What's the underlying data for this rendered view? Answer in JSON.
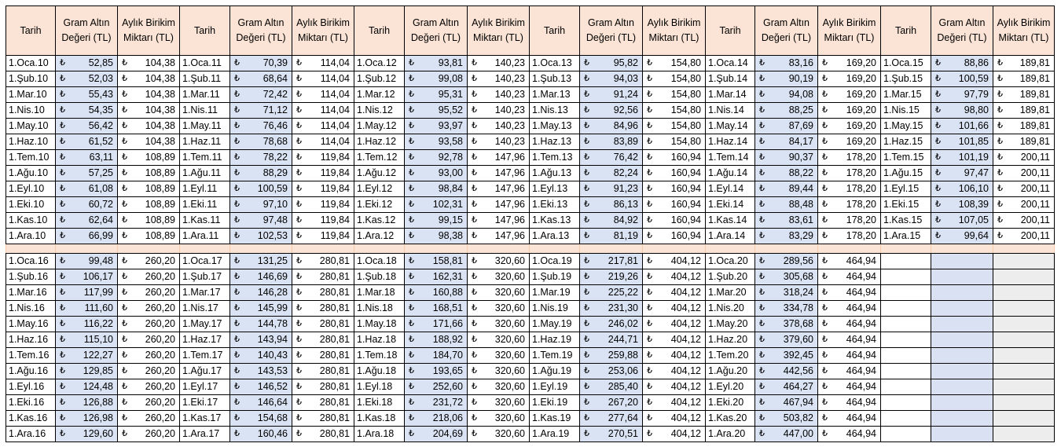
{
  "currency_symbol": "₺",
  "headers": {
    "date": "Tarih",
    "gold": "Gram Altın Değeri (TL)",
    "savings": "Aylık Birikim Miktarı (TL)"
  },
  "top_block": {
    "groups": [
      {
        "dates": [
          "1.Oca.10",
          "1.Şub.10",
          "1.Mar.10",
          "1.Nis.10",
          "1.May.10",
          "1.Haz.10",
          "1.Tem.10",
          "1.Ağu.10",
          "1.Eyl.10",
          "1.Eki.10",
          "1.Kas.10",
          "1.Ara.10"
        ],
        "gold": [
          "52,85",
          "52,03",
          "55,43",
          "54,35",
          "56,42",
          "61,52",
          "63,11",
          "57,25",
          "61,08",
          "60,72",
          "62,64",
          "66,99"
        ],
        "savings": [
          "104,38",
          "104,38",
          "104,38",
          "104,38",
          "104,38",
          "104,38",
          "108,89",
          "108,89",
          "108,89",
          "108,89",
          "108,89",
          "108,89"
        ]
      },
      {
        "dates": [
          "1.Oca.11",
          "1.Şub.11",
          "1.Mar.11",
          "1.Nis.11",
          "1.May.11",
          "1.Haz.11",
          "1.Tem.11",
          "1.Ağu.11",
          "1.Eyl.11",
          "1.Eki.11",
          "1.Kas.11",
          "1.Ara.11"
        ],
        "gold": [
          "70,39",
          "68,64",
          "72,42",
          "71,12",
          "76,46",
          "78,68",
          "78,22",
          "88,29",
          "100,59",
          "97,10",
          "97,48",
          "102,53"
        ],
        "savings": [
          "114,04",
          "114,04",
          "114,04",
          "114,04",
          "114,04",
          "114,04",
          "119,84",
          "119,84",
          "119,84",
          "119,84",
          "119,84",
          "119,84"
        ]
      },
      {
        "dates": [
          "1.Oca.12",
          "1.Şub.12",
          "1.Mar.12",
          "1.Nis.12",
          "1.May.12",
          "1.Haz.12",
          "1.Tem.12",
          "1.Ağu.12",
          "1.Eyl.12",
          "1.Eki.12",
          "1.Kas.12",
          "1.Ara.12"
        ],
        "gold": [
          "93,81",
          "99,08",
          "95,31",
          "95,52",
          "93,97",
          "93,58",
          "92,78",
          "93,00",
          "98,84",
          "102,31",
          "99,15",
          "98,38"
        ],
        "savings": [
          "140,23",
          "140,23",
          "140,23",
          "140,23",
          "140,23",
          "140,23",
          "147,96",
          "147,96",
          "147,96",
          "147,96",
          "147,96",
          "147,96"
        ]
      },
      {
        "dates": [
          "1.Oca.13",
          "1.Şub.13",
          "1.Mar.13",
          "1.Nis.13",
          "1.May.13",
          "1.Haz.13",
          "1.Tem.13",
          "1.Ağu.13",
          "1.Eyl.13",
          "1.Eki.13",
          "1.Kas.13",
          "1.Ara.13"
        ],
        "gold": [
          "95,82",
          "94,03",
          "91,24",
          "92,56",
          "84,96",
          "83,89",
          "76,42",
          "82,24",
          "91,23",
          "86,13",
          "84,92",
          "81,19"
        ],
        "savings": [
          "154,80",
          "154,80",
          "154,80",
          "154,80",
          "154,80",
          "154,80",
          "160,94",
          "160,94",
          "160,94",
          "160,94",
          "160,94",
          "160,94"
        ]
      },
      {
        "dates": [
          "1.Oca.14",
          "1.Şub.14",
          "1.Mar.14",
          "1.Nis.14",
          "1.May.14",
          "1.Haz.14",
          "1.Tem.14",
          "1.Ağu.14",
          "1.Eyl.14",
          "1.Eki.14",
          "1.Kas.14",
          "1.Ara.14"
        ],
        "gold": [
          "83,16",
          "90,19",
          "94,08",
          "88,25",
          "87,69",
          "84,17",
          "90,37",
          "88,22",
          "89,44",
          "88,48",
          "83,61",
          "83,29"
        ],
        "savings": [
          "169,20",
          "169,20",
          "169,20",
          "169,20",
          "169,20",
          "169,20",
          "178,20",
          "178,20",
          "178,20",
          "178,20",
          "178,20",
          "178,20"
        ]
      },
      {
        "dates": [
          "1.Oca.15",
          "1.Şub.15",
          "1.Mar.15",
          "1.Nis.15",
          "1.May.15",
          "1.Haz.15",
          "1.Tem.15",
          "1.Ağu.15",
          "1.Eyl.15",
          "1.Eki.15",
          "1.Kas.15",
          "1.Ara.15"
        ],
        "gold": [
          "88,86",
          "100,59",
          "97,79",
          "98,80",
          "101,66",
          "101,85",
          "101,19",
          "97,47",
          "106,10",
          "108,39",
          "107,05",
          "99,64"
        ],
        "savings": [
          "189,81",
          "189,81",
          "189,81",
          "189,81",
          "189,81",
          "189,81",
          "200,11",
          "200,11",
          "200,11",
          "200,11",
          "200,11",
          "200,11"
        ]
      }
    ]
  },
  "bottom_block": {
    "groups": [
      {
        "dates": [
          "1.Oca.16",
          "1.Şub.16",
          "1.Mar.16",
          "1.Nis.16",
          "1.May.16",
          "1.Haz.16",
          "1.Tem.16",
          "1.Ağu.16",
          "1.Eyl.16",
          "1.Eki.16",
          "1.Kas.16",
          "1.Ara.16"
        ],
        "gold": [
          "99,48",
          "106,17",
          "117,99",
          "111,60",
          "116,22",
          "115,10",
          "122,27",
          "129,85",
          "124,48",
          "126,88",
          "126,98",
          "129,60"
        ],
        "savings": [
          "260,20",
          "260,20",
          "260,20",
          "260,20",
          "260,20",
          "260,20",
          "260,20",
          "260,20",
          "260,20",
          "260,20",
          "260,20",
          "260,20"
        ]
      },
      {
        "dates": [
          "1.Oca.17",
          "1.Şub.17",
          "1.Mar.17",
          "1.Nis.17",
          "1.May.17",
          "1.Haz.17",
          "1.Tem.17",
          "1.Ağu.17",
          "1.Eyl.17",
          "1.Eki.17",
          "1.Kas.17",
          "1.Ara.17"
        ],
        "gold": [
          "131,25",
          "146,69",
          "146,28",
          "145,99",
          "144,78",
          "143,94",
          "140,43",
          "143,53",
          "146,52",
          "146,64",
          "154,68",
          "160,46"
        ],
        "savings": [
          "280,81",
          "280,81",
          "280,81",
          "280,81",
          "280,81",
          "280,81",
          "280,81",
          "280,81",
          "280,81",
          "280,81",
          "280,81",
          "280,81"
        ]
      },
      {
        "dates": [
          "1.Oca.18",
          "1.Şub.18",
          "1.Mar.18",
          "1.Nis.18",
          "1.May.18",
          "1.Haz.18",
          "1.Tem.18",
          "1.Ağu.18",
          "1.Eyl.18",
          "1.Eki.18",
          "1.Kas.18",
          "1.Ara.18"
        ],
        "gold": [
          "158,81",
          "162,31",
          "160,88",
          "168,51",
          "171,66",
          "188,92",
          "184,70",
          "193,65",
          "252,60",
          "231,72",
          "218,06",
          "204,69"
        ],
        "savings": [
          "320,60",
          "320,60",
          "320,60",
          "320,60",
          "320,60",
          "320,60",
          "320,60",
          "320,60",
          "320,60",
          "320,60",
          "320,60",
          "320,60"
        ]
      },
      {
        "dates": [
          "1.Oca.19",
          "1.Şub.19",
          "1.Mar.19",
          "1.Nis.19",
          "1.May.19",
          "1.Haz.19",
          "1.Tem.19",
          "1.Ağu.19",
          "1.Eyl.19",
          "1.Eki.19",
          "1.Kas.19",
          "1.Ara.19"
        ],
        "gold": [
          "217,81",
          "219,26",
          "225,22",
          "231,30",
          "246,02",
          "244,71",
          "259,88",
          "253,06",
          "285,40",
          "267,20",
          "277,64",
          "270,51"
        ],
        "savings": [
          "404,12",
          "404,12",
          "404,12",
          "404,12",
          "404,12",
          "404,12",
          "404,12",
          "404,12",
          "404,12",
          "404,12",
          "404,12",
          "404,12"
        ]
      },
      {
        "dates": [
          "1.Oca.20",
          "1.Şub.20",
          "1.Mar.20",
          "1.Nis.20",
          "1.May.20",
          "1.Haz.20",
          "1.Tem.20",
          "1.Ağu.20",
          "1.Eyl.20",
          "1.Eki.20",
          "1.Kas.20",
          "1.Ara.20"
        ],
        "gold": [
          "289,56",
          "305,68",
          "318,24",
          "334,78",
          "378,68",
          "379,60",
          "392,45",
          "442,56",
          "464,27",
          "467,94",
          "503,82",
          "447,00"
        ],
        "savings": [
          "464,94",
          "464,94",
          "464,94",
          "464,94",
          "464,94",
          "464,94",
          "464,94",
          "464,94",
          "464,94",
          "464,94",
          "464,94",
          "464,94"
        ]
      }
    ]
  }
}
